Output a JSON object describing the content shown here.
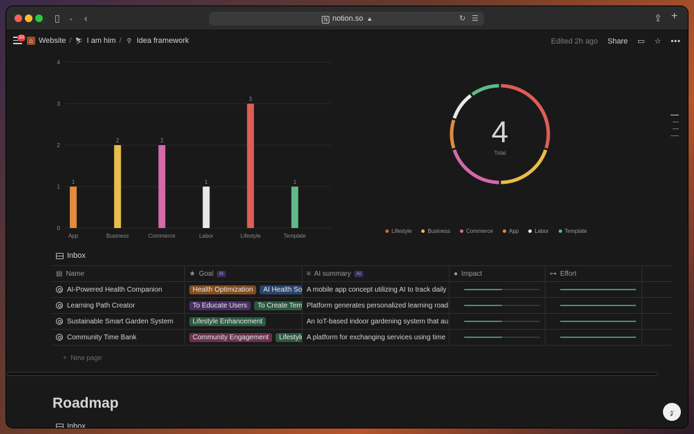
{
  "browser": {
    "url": "notion.so"
  },
  "toolbar": {
    "badge_count": "33",
    "breadcrumbs": [
      {
        "label": "Website"
      },
      {
        "label": "I am him"
      },
      {
        "label": "Idea framework"
      }
    ],
    "edited": "Edited 2h ago",
    "share_label": "Share"
  },
  "chart_data": [
    {
      "type": "bar",
      "categories": [
        "App",
        "Business",
        "Commerce",
        "Labor",
        "Lifestyle",
        "Template"
      ],
      "values": [
        1,
        2,
        2,
        1,
        3,
        1
      ],
      "colors": [
        "#e28b3c",
        "#e8bd4a",
        "#d46aa8",
        "#e8e8e8",
        "#dd5e57",
        "#5fb98a"
      ],
      "y_ticks": [
        0,
        1,
        2,
        3,
        4
      ],
      "ylim": [
        0,
        4
      ],
      "grid": true
    },
    {
      "type": "pie",
      "donut": true,
      "categories": [
        "Lifestyle",
        "Business",
        "Commerce",
        "App",
        "Labor",
        "Template"
      ],
      "values": [
        3,
        2,
        2,
        1,
        1,
        1
      ],
      "colors": [
        "#dd5e57",
        "#e8bd4a",
        "#d46aa8",
        "#e28b3c",
        "#e8e8e8",
        "#5fb98a"
      ],
      "center_value": "4",
      "center_label": "Total",
      "legend_position": "bottom"
    }
  ],
  "inbox": {
    "view_label": "Inbox",
    "columns": [
      "Name",
      "Goal",
      "AI summary",
      "Impact",
      "Effort"
    ],
    "ai_tag": "AI",
    "rows": [
      {
        "name": "AI-Powered Health Companion",
        "goals": [
          {
            "label": "Health Optimization",
            "color": "orange"
          },
          {
            "label": "AI Health Solutions",
            "color": "blue"
          }
        ],
        "summary": "A mobile app concept utilizing AI to track daily",
        "impact": 0.5,
        "effort": 1.0
      },
      {
        "name": "Learning Path Creator",
        "goals": [
          {
            "label": "To Educate Users",
            "color": "purple"
          },
          {
            "label": "To Create Templates",
            "color": "green"
          }
        ],
        "summary": "Platform generates personalized learning road",
        "impact": 0.5,
        "effort": 1.0
      },
      {
        "name": "Sustainable Smart Garden System",
        "goals": [
          {
            "label": "Lifestyle Enhancement",
            "color": "green"
          }
        ],
        "summary": "An IoT-based indoor gardening system that au",
        "impact": 0.5,
        "effort": 1.0
      },
      {
        "name": "Community Time Bank",
        "goals": [
          {
            "label": "Community Engagement",
            "color": "pink"
          },
          {
            "label": "Lifestyle",
            "color": "green"
          }
        ],
        "summary": "A platform for exchanging services using time",
        "impact": 0.5,
        "effort": 1.0
      }
    ],
    "new_page": "New page"
  },
  "roadmap": {
    "title": "Roadmap",
    "view_label": "Inbox"
  }
}
